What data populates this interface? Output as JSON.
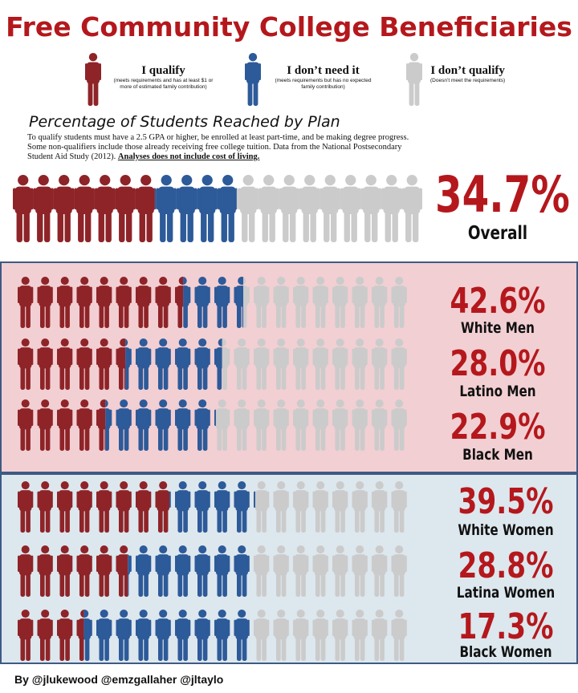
{
  "title": "Free Community College Beneficiaries",
  "colors": {
    "qualify": "#8e2428",
    "no_need": "#2d5a99",
    "not_qualify": "#cbcbcb",
    "accent": "#b4181c"
  },
  "legend": [
    {
      "label": "I qualify",
      "sub": "(meets requirements and has at least $1 or more of estimated family contribution)",
      "icon": "person-icon",
      "color_key": "qualify"
    },
    {
      "label": "I don’t need it",
      "sub": "(meets requirements but has no expected family contribution)",
      "icon": "person-icon",
      "color_key": "no_need"
    },
    {
      "label": "I don’t qualify",
      "sub": "(Doesn’t meet the requirements)",
      "icon": "person-icon",
      "color_key": "not_qualify"
    }
  ],
  "section_heading": "Percentage of Students Reached by Plan",
  "intro": {
    "text": "To qualify students must have a 2.5 GPA or higher, be enrolled at least part-time, and be making degree progress.  Some non-qualifiers include those already receiving free college tuition. Data  from the National Postsecondary Student Aid Study (2012). ",
    "emphasis": "Analyses does not include cost of living."
  },
  "overall": {
    "percent_label": "34.7%",
    "group": "Overall",
    "qualify_pct": 34.7,
    "no_need_pct": 20,
    "total_icons": 20
  },
  "groups": [
    {
      "percent_label": "42.6%",
      "group": "White Men",
      "qualify_pct": 42.6,
      "no_need_pct": 15.4,
      "total_icons": 20,
      "panel": "men"
    },
    {
      "percent_label": "28.0%",
      "group": "Latino Men",
      "qualify_pct": 28.0,
      "no_need_pct": 24.5,
      "total_icons": 20,
      "panel": "men"
    },
    {
      "percent_label": "22.9%",
      "group": "Black Men",
      "qualify_pct": 22.9,
      "no_need_pct": 27.6,
      "total_icons": 20,
      "panel": "men"
    },
    {
      "percent_label": "39.5%",
      "group": "White Women",
      "qualify_pct": 39.5,
      "no_need_pct": 21,
      "total_icons": 20,
      "panel": "women"
    },
    {
      "percent_label": "28.8%",
      "group": "Latina Women",
      "qualify_pct": 28.8,
      "no_need_pct": 31.2,
      "total_icons": 20,
      "panel": "women"
    },
    {
      "percent_label": "17.3%",
      "group": "Black Women",
      "qualify_pct": 17.3,
      "no_need_pct": 42.7,
      "total_icons": 20,
      "panel": "women"
    }
  ],
  "credits": "By @jlukewood @emzgallaher @jltaylo"
}
